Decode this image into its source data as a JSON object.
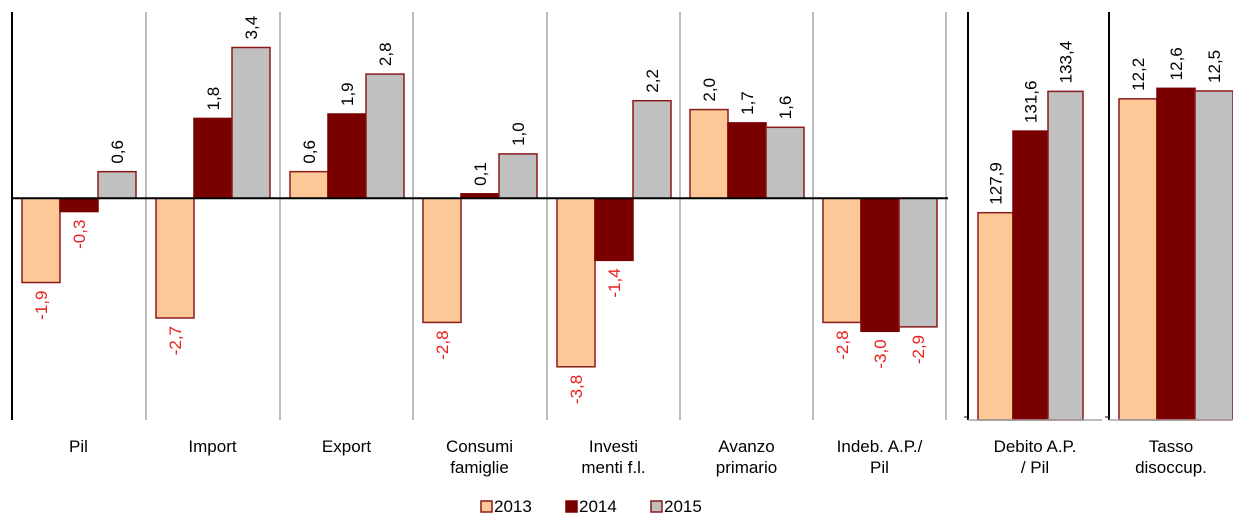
{
  "chart_data": [
    {
      "type": "bar",
      "categories": [
        [
          "Pil"
        ],
        [
          "Import"
        ],
        [
          "Export"
        ],
        [
          "Consumi",
          "famiglie"
        ],
        [
          "Investi",
          "menti f.l."
        ],
        [
          "Avanzo",
          "primario"
        ],
        [
          "Indeb. A.P./",
          "Pil"
        ]
      ],
      "series": [
        {
          "name": "2013",
          "values": [
            -1.9,
            -2.7,
            0.6,
            -2.8,
            -3.8,
            2.0,
            -2.8
          ],
          "labels": [
            "-1,9",
            "-2,7",
            "0,6",
            "-2,8",
            "-3,8",
            "2,0",
            "-2,8"
          ]
        },
        {
          "name": "2014",
          "values": [
            -0.3,
            1.8,
            1.9,
            0.1,
            -1.4,
            1.7,
            -3.0
          ],
          "labels": [
            "-0,3",
            "1,8",
            "1,9",
            "0,1",
            "-1,4",
            "1,7",
            "-3,0"
          ]
        },
        {
          "name": "2015",
          "values": [
            0.6,
            3.4,
            2.8,
            1.0,
            2.2,
            1.6,
            -2.9
          ],
          "labels": [
            "0,6",
            "3,4",
            "2,8",
            "1,0",
            "2,2",
            "1,6",
            "-2,9"
          ]
        }
      ],
      "ylim": [
        -5.0,
        4.2
      ]
    },
    {
      "type": "bar",
      "categories": [
        [
          "Debito     A.P.",
          "/ Pil"
        ]
      ],
      "series": [
        {
          "name": "2013",
          "values": [
            127.9
          ],
          "labels": [
            "127,9"
          ]
        },
        {
          "name": "2014",
          "values": [
            131.6
          ],
          "labels": [
            "131,6"
          ]
        },
        {
          "name": "2015",
          "values": [
            133.4
          ],
          "labels": [
            "133,4"
          ]
        }
      ],
      "ylim": [
        118.5,
        137.0
      ]
    },
    {
      "type": "bar",
      "categories": [
        [
          "Tasso",
          "disoccup."
        ]
      ],
      "series": [
        {
          "name": "2013",
          "values": [
            12.2
          ],
          "labels": [
            "12,2"
          ]
        },
        {
          "name": "2014",
          "values": [
            12.6
          ],
          "labels": [
            "12,6"
          ]
        },
        {
          "name": "2015",
          "values": [
            12.5
          ],
          "labels": [
            "12,5"
          ]
        }
      ],
      "ylim": [
        0,
        15.5
      ]
    }
  ],
  "legend": {
    "placement": "bottom",
    "items": [
      {
        "label": "2013",
        "fill": "#fcc898",
        "stroke": "#8b1a1a"
      },
      {
        "label": "2014",
        "fill": "#7a0000",
        "stroke": "#7a0000"
      },
      {
        "label": "2015",
        "fill": "#c0c0c0",
        "stroke": "#8b1a1a"
      }
    ]
  },
  "colors": {
    "bar_2013": "#fcc898",
    "bar_2014": "#7a0000",
    "bar_2015": "#c0c0c0",
    "bar_outline": "#8b1a1a",
    "negative_label": "#e8201c",
    "positive_label": "#000000",
    "axis": "#000000",
    "separator": "#a6a6a6"
  }
}
